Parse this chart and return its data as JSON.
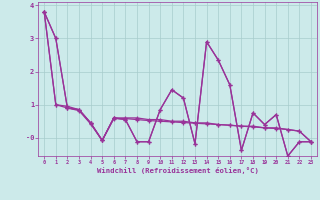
{
  "xlabel": "Windchill (Refroidissement éolien,°C)",
  "x": [
    0,
    1,
    2,
    3,
    4,
    5,
    6,
    7,
    8,
    9,
    10,
    11,
    12,
    13,
    14,
    15,
    16,
    17,
    18,
    19,
    20,
    21,
    22,
    23
  ],
  "series1": [
    3.8,
    3.0,
    0.9,
    0.85,
    0.45,
    -0.08,
    0.6,
    0.55,
    -0.12,
    -0.12,
    0.85,
    1.45,
    1.2,
    -0.18,
    2.9,
    2.35,
    1.6,
    -0.38,
    0.75,
    0.4,
    0.7,
    -0.55,
    -0.12,
    -0.12
  ],
  "series2": [
    3.8,
    3.0,
    0.9,
    0.85,
    0.45,
    -0.08,
    0.6,
    0.55,
    -0.12,
    -0.12,
    0.85,
    1.45,
    1.2,
    -0.18,
    2.9,
    2.35,
    1.6,
    -0.38,
    0.75,
    0.4,
    0.7,
    -0.55,
    -0.12,
    -0.12
  ],
  "series3": [
    3.8,
    1.0,
    0.95,
    0.85,
    0.45,
    -0.08,
    0.6,
    0.6,
    0.6,
    0.55,
    0.55,
    0.5,
    0.5,
    0.45,
    0.45,
    0.4,
    0.38,
    0.35,
    0.35,
    0.3,
    0.3,
    0.25,
    0.2,
    -0.12
  ],
  "series4": [
    3.8,
    1.0,
    0.9,
    0.82,
    0.42,
    -0.08,
    0.58,
    0.58,
    0.55,
    0.52,
    0.5,
    0.48,
    0.46,
    0.44,
    0.42,
    0.4,
    0.38,
    0.35,
    0.33,
    0.3,
    0.28,
    0.25,
    0.2,
    -0.12
  ],
  "line_color": "#993399",
  "bg_color": "#cceaea",
  "grid_color": "#a8cccc",
  "xlim": [
    -0.5,
    23.5
  ],
  "ylim": [
    -0.55,
    4.1
  ],
  "yticks": [
    4,
    3,
    2,
    1,
    0
  ],
  "ytick_labels": [
    "4",
    "3",
    "2",
    "1",
    "-0"
  ]
}
